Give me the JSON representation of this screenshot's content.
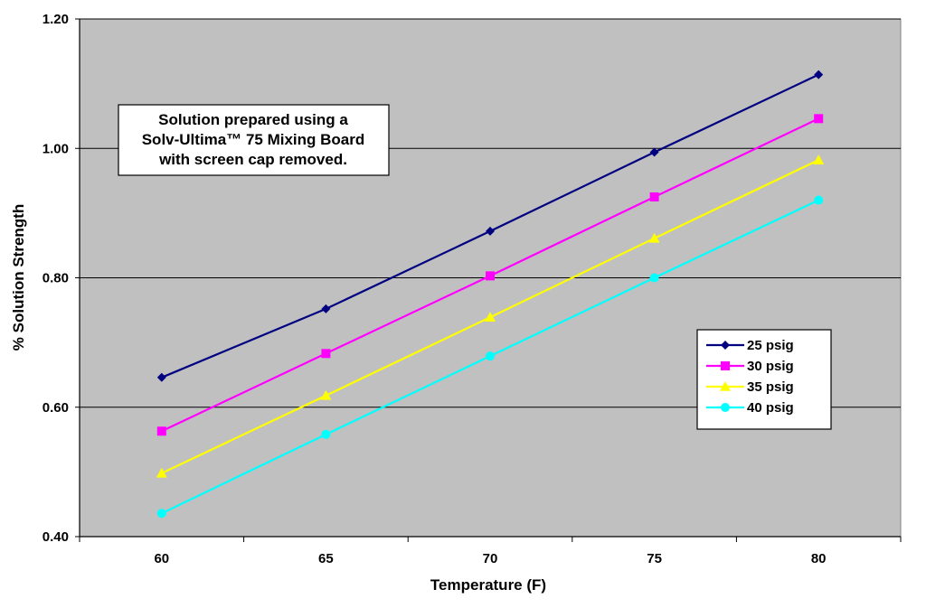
{
  "chart_data": {
    "type": "line",
    "title": "",
    "xlabel": "Temperature (F)",
    "ylabel": "% Solution Strength",
    "categories": [
      "60",
      "65",
      "70",
      "75",
      "80"
    ],
    "x": [
      60,
      65,
      70,
      75,
      80
    ],
    "ylim": [
      0.4,
      1.2
    ],
    "yticks": [
      "0.40",
      "0.60",
      "0.80",
      "1.00",
      "1.20"
    ],
    "grid": "horizontal major gridlines",
    "legend_position": "right",
    "series": [
      {
        "name": "25 psig",
        "color": "#000080",
        "marker": "diamond",
        "values": [
          0.646,
          0.752,
          0.872,
          0.994,
          1.114
        ]
      },
      {
        "name": "30 psig",
        "color": "#FF00FF",
        "marker": "square",
        "values": [
          0.563,
          0.683,
          0.803,
          0.925,
          1.046
        ]
      },
      {
        "name": "35 psig",
        "color": "#FFFF00",
        "marker": "triangle",
        "values": [
          0.498,
          0.618,
          0.739,
          0.861,
          0.982
        ]
      },
      {
        "name": "40 psig",
        "color": "#00FFFF",
        "marker": "circle",
        "values": [
          0.436,
          0.558,
          0.679,
          0.8,
          0.92
        ]
      }
    ],
    "annotation": {
      "lines": [
        "Solution prepared using a",
        "Solv-Ultima™ 75 Mixing Board",
        "with screen cap removed."
      ]
    },
    "colors": {
      "plot_background": "#C0C0C0",
      "gridline": "#000000"
    }
  }
}
